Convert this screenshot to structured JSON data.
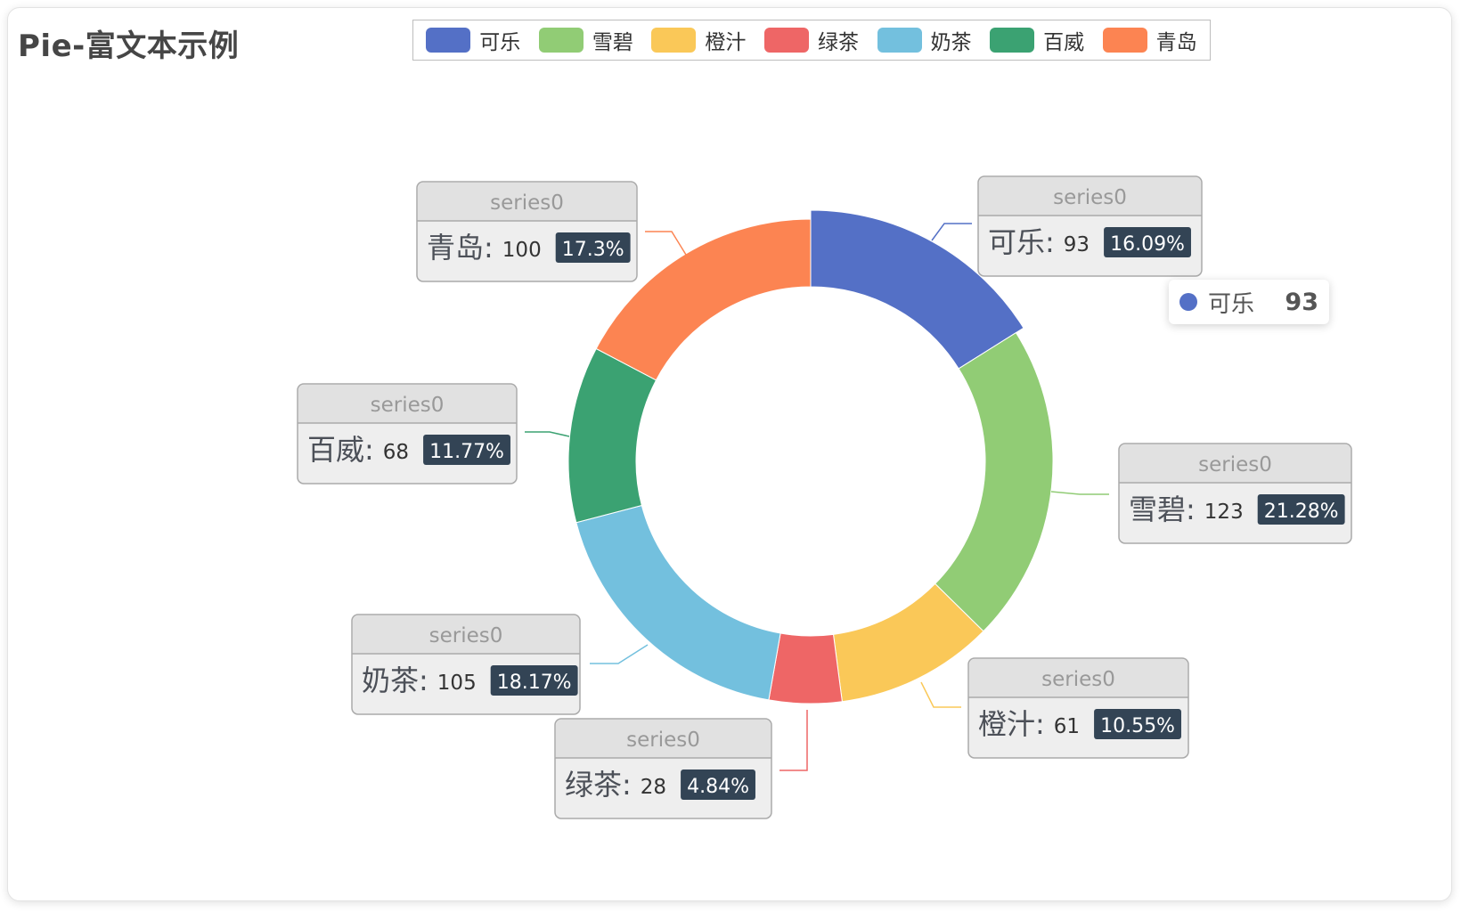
{
  "chart_data": {
    "type": "pie",
    "variant": "donut",
    "title": "Pie-富文本示例",
    "series_name": "series0",
    "legend_position": "top",
    "slices": [
      {
        "name": "可乐",
        "value": 93,
        "percent": "16.09%",
        "color": "#5470c6"
      },
      {
        "name": "雪碧",
        "value": 123,
        "percent": "21.28%",
        "color": "#91cc75"
      },
      {
        "name": "橙汁",
        "value": 61,
        "percent": "10.55%",
        "color": "#fac858"
      },
      {
        "name": "绿茶",
        "value": 28,
        "percent": "4.84%",
        "color": "#ee6666"
      },
      {
        "name": "奶茶",
        "value": 105,
        "percent": "18.17%",
        "color": "#73c0de"
      },
      {
        "name": "百威",
        "value": 68,
        "percent": "11.77%",
        "color": "#3ba272"
      },
      {
        "name": "青岛",
        "value": 100,
        "percent": "17.3%",
        "color": "#fc8452"
      }
    ]
  },
  "tooltip": {
    "name": "可乐",
    "value": "93",
    "color": "#5470c6"
  }
}
